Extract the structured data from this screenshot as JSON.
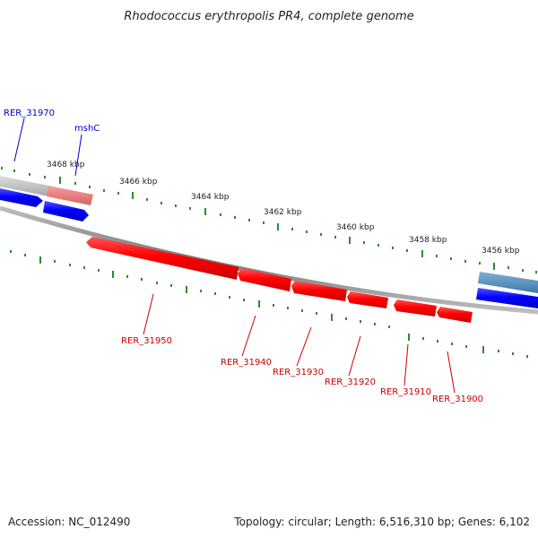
{
  "title": "Rhodococcus erythropolis PR4, complete genome",
  "footer": {
    "accession": "Accession: NC_012490",
    "summary": "Topology: circular; Length: 6,516,310 bp; Genes: 6,102"
  },
  "scale_labels": [
    "3468 kbp",
    "3466 kbp",
    "3464 kbp",
    "3462 kbp",
    "3460 kbp",
    "3458 kbp",
    "3456 kbp"
  ],
  "genes_forward": [
    {
      "label": "RER_31970"
    },
    {
      "label": "mshC"
    }
  ],
  "genes_reverse": [
    {
      "label": "RER_31950"
    },
    {
      "label": "RER_31940"
    },
    {
      "label": "RER_31930"
    },
    {
      "label": "RER_31920"
    },
    {
      "label": "RER_31910"
    },
    {
      "label": "RER_31900"
    }
  ],
  "colors": {
    "forward": "#0000ff",
    "reverse": "#ff0000",
    "tick": "#2e8b2e",
    "backbone": "#888888"
  }
}
